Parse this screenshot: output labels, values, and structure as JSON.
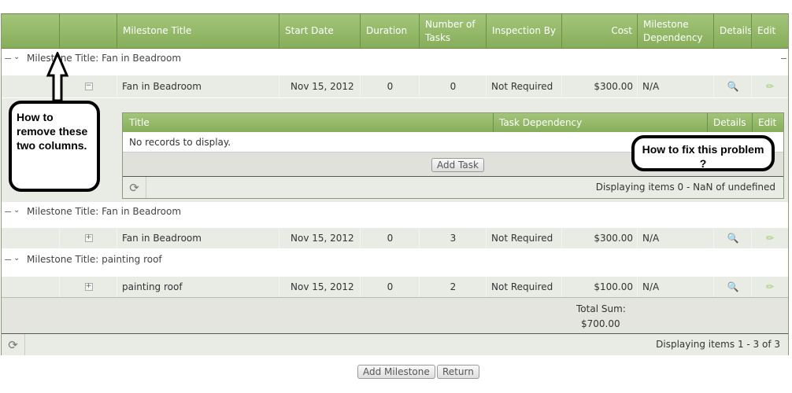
{
  "grid": {
    "columns": [
      "",
      "",
      "Milestone Title",
      "Start Date",
      "Duration",
      "Number of Tasks",
      "Inspection By",
      "Cost",
      "Milestone Dependency",
      "Details",
      "Edit"
    ],
    "groups": [
      {
        "label": "Milestone Title: Fan in Beadroom",
        "row": {
          "title": "Fan in Beadroom",
          "start": "Nov 15, 2012",
          "duration": "0",
          "tasks": "0",
          "inspection": "Not Required",
          "cost": "$300.00",
          "dependency": "N/A"
        },
        "expanded": true
      },
      {
        "label": "Milestone Title: Fan in Beadroom",
        "row": {
          "title": "Fan in Beadroom",
          "start": "Nov 15, 2012",
          "duration": "0",
          "tasks": "3",
          "inspection": "Not Required",
          "cost": "$300.00",
          "dependency": "N/A"
        }
      },
      {
        "label": "Milestone Title: painting roof",
        "row": {
          "title": "painting roof",
          "start": "Nov 15, 2012",
          "duration": "0",
          "tasks": "2",
          "inspection": "Not Required",
          "cost": "$100.00",
          "dependency": "N/A"
        }
      }
    ],
    "nested": {
      "columns": [
        "Title",
        "Task Dependency",
        "Details",
        "Edit"
      ],
      "empty": "No records to display.",
      "add_task": "Add Task",
      "pager": "Displaying items 0 - NaN of undefined"
    },
    "footer": {
      "total_label": "Total Sum:",
      "total": "$700.00"
    },
    "pager": "Displaying items 1 - 3 of 3"
  },
  "buttons": {
    "add_milestone": "Add Milestone",
    "return": "Return"
  },
  "annotations": {
    "left": "How to remove these two columns.",
    "right": "How to fix this problem ?"
  },
  "colors": {
    "header": "#8fb565",
    "row": "#e9ebe5"
  }
}
